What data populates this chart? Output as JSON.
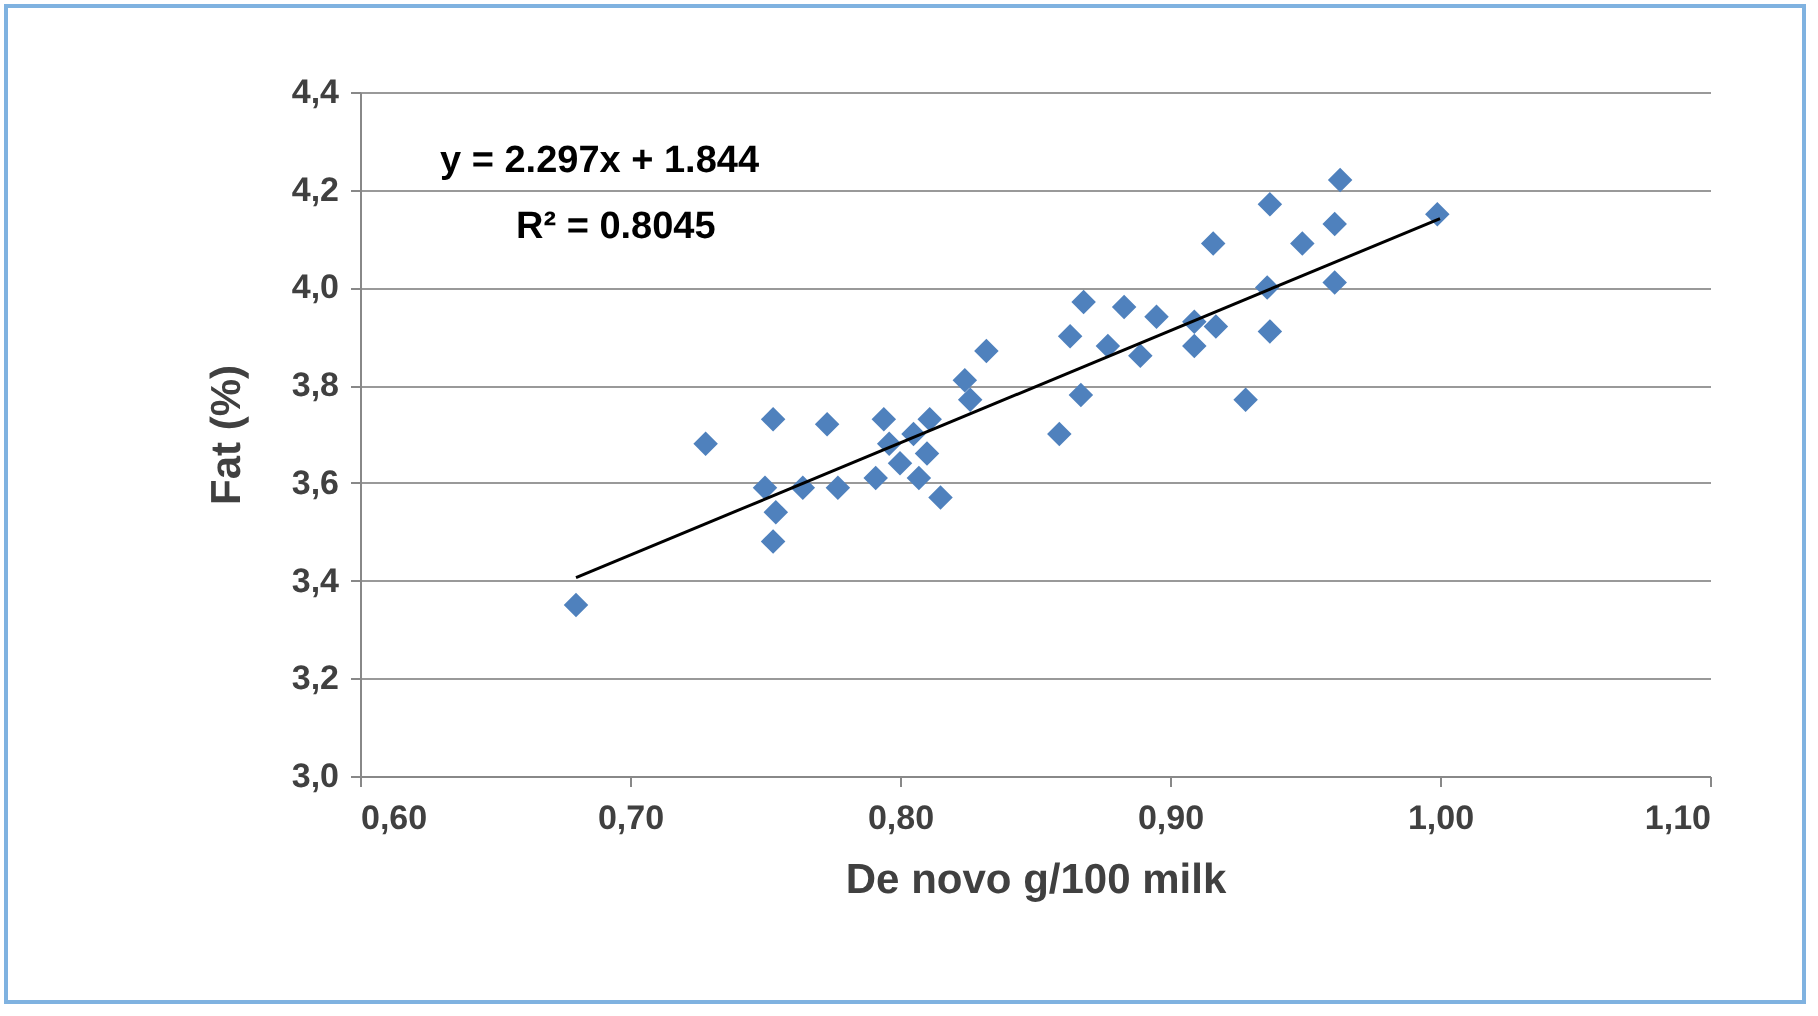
{
  "chart_data": {
    "type": "scatter",
    "xlabel": "De novo g/100 milk",
    "ylabel": "Fat (%)",
    "xlim": [
      0.6,
      1.1
    ],
    "xticks": [
      {
        "value": 0.6,
        "label": "0,60"
      },
      {
        "value": 0.7,
        "label": "0,70"
      },
      {
        "value": 0.8,
        "label": "0,80"
      },
      {
        "value": 0.9,
        "label": "0,90"
      },
      {
        "value": 1.0,
        "label": "1,00"
      },
      {
        "value": 1.1,
        "label": "1,10"
      }
    ],
    "ylim": [
      3.0,
      4.4
    ],
    "yticks": [
      {
        "value": 3.0,
        "label": "3,0"
      },
      {
        "value": 3.2,
        "label": "3,2"
      },
      {
        "value": 3.4,
        "label": "3,4"
      },
      {
        "value": 3.6,
        "label": "3,6"
      },
      {
        "value": 3.8,
        "label": "3,8"
      },
      {
        "value": 4.0,
        "label": "4,0"
      },
      {
        "value": 4.2,
        "label": "4,2"
      },
      {
        "value": 4.4,
        "label": "4,4"
      }
    ],
    "grid": "y",
    "marker": "diamond",
    "annotations": [
      "y = 2.297x + 1.844",
      "R² = 0.8045"
    ],
    "series": [
      {
        "color": "#4f81bd",
        "x": [
          0.68,
          0.728,
          0.753,
          0.75,
          0.764,
          0.754,
          0.753,
          0.773,
          0.777,
          0.794,
          0.791,
          0.796,
          0.8,
          0.805,
          0.81,
          0.811,
          0.807,
          0.815,
          0.824,
          0.826,
          0.832,
          0.859,
          0.867,
          0.863,
          0.868,
          0.877,
          0.883,
          0.889,
          0.895,
          0.909,
          0.909,
          0.917,
          0.928,
          0.916,
          0.937,
          0.949,
          0.936,
          0.937,
          0.961,
          0.963,
          0.961,
          0.999
        ],
        "values": [
          3.35,
          3.68,
          3.73,
          3.59,
          3.59,
          3.54,
          3.48,
          3.72,
          3.59,
          3.73,
          3.61,
          3.68,
          3.64,
          3.7,
          3.66,
          3.73,
          3.61,
          3.57,
          3.81,
          3.77,
          3.87,
          3.7,
          3.78,
          3.9,
          3.97,
          3.88,
          3.96,
          3.86,
          3.94,
          3.93,
          3.88,
          3.92,
          3.77,
          4.09,
          4.17,
          4.09,
          4.0,
          3.91,
          4.13,
          4.22,
          4.01,
          4.15
        ]
      },
      {
        "type": "line",
        "color": "#000000",
        "line_style": "solid",
        "marker": "none",
        "x": [
          0.68,
          1.0
        ],
        "values": [
          3.406,
          4.141
        ]
      }
    ]
  }
}
